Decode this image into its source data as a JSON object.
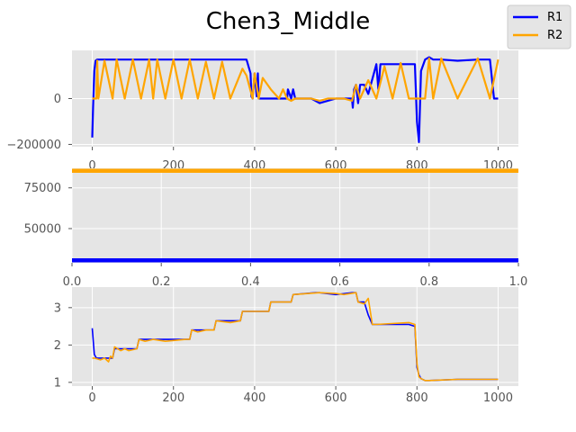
{
  "figure": {
    "title": "Chen3_Middle"
  },
  "legend": {
    "placement": "top-right",
    "entries": [
      {
        "label": "R1",
        "color": "#0000ff"
      },
      {
        "label": "R2",
        "color": "#ffa500"
      }
    ]
  },
  "chart_data": [
    {
      "type": "line",
      "panel": "top",
      "xlim": [
        -50,
        1050
      ],
      "ylim": [
        -210000,
        210000
      ],
      "xticks": [
        0,
        200,
        400,
        600,
        800,
        1000
      ],
      "yticks": [
        -200000,
        0
      ],
      "xtick_labels": [
        "0",
        "200",
        "400",
        "600",
        "800",
        "1000"
      ],
      "ytick_labels": [
        "−200000",
        "0"
      ],
      "grid": true,
      "series": [
        {
          "name": "R1",
          "color": "#0000ff",
          "x": [
            0,
            2,
            5,
            8,
            12,
            380,
            390,
            392,
            395,
            400,
            405,
            408,
            410,
            480,
            482,
            490,
            495,
            500,
            540,
            560,
            600,
            620,
            640,
            642,
            645,
            650,
            655,
            660,
            670,
            680,
            700,
            705,
            710,
            720,
            760,
            780,
            795,
            800,
            805,
            810,
            820,
            830,
            840,
            860,
            900,
            950,
            980,
            990,
            1000
          ],
          "y": [
            -170000,
            -40000,
            120000,
            165000,
            170000,
            170000,
            110000,
            10000,
            0,
            110000,
            10000,
            110000,
            0,
            0,
            40000,
            0,
            40000,
            0,
            0,
            -20000,
            0,
            0,
            0,
            -40000,
            40000,
            60000,
            -20000,
            60000,
            60000,
            20000,
            150000,
            40000,
            150000,
            150000,
            150000,
            150000,
            150000,
            -100000,
            -190000,
            120000,
            170000,
            180000,
            170000,
            170000,
            165000,
            170000,
            170000,
            0,
            0
          ]
        },
        {
          "name": "R2",
          "color": "#ffa500",
          "x": [
            0,
            5,
            10,
            12,
            15,
            30,
            50,
            60,
            80,
            100,
            120,
            140,
            150,
            160,
            180,
            200,
            220,
            240,
            260,
            280,
            300,
            320,
            340,
            370,
            380,
            395,
            400,
            410,
            420,
            440,
            460,
            470,
            480,
            490,
            500,
            520,
            540,
            560,
            580,
            600,
            620,
            640,
            650,
            660,
            680,
            700,
            720,
            740,
            760,
            780,
            800,
            820,
            830,
            840,
            860,
            900,
            950,
            980,
            1000
          ],
          "y": [
            0,
            0,
            0,
            165000,
            0,
            165000,
            0,
            170000,
            0,
            170000,
            0,
            170000,
            0,
            170000,
            0,
            170000,
            0,
            170000,
            0,
            160000,
            0,
            160000,
            0,
            130000,
            100000,
            0,
            110000,
            0,
            90000,
            40000,
            0,
            40000,
            0,
            -10000,
            0,
            0,
            0,
            -10000,
            0,
            0,
            0,
            -10000,
            60000,
            0,
            80000,
            0,
            140000,
            0,
            155000,
            0,
            0,
            0,
            175000,
            0,
            175000,
            0,
            175000,
            0,
            170000
          ]
        }
      ]
    },
    {
      "type": "line",
      "panel": "middle",
      "xlim": [
        0,
        1
      ],
      "ylim": [
        29000,
        87000
      ],
      "xticks": [
        0,
        0.2,
        0.4,
        0.6,
        0.8,
        1.0
      ],
      "yticks": [
        50000,
        75000
      ],
      "xtick_labels": [
        "0.0",
        "0.2",
        "0.4",
        "0.6",
        "0.8",
        "1.0"
      ],
      "ytick_labels": [
        "50000",
        "75000"
      ],
      "grid": true,
      "series": [
        {
          "name": "R1",
          "color": "#0000ff",
          "x": [
            0,
            1
          ],
          "y": [
            30500,
            30500
          ]
        },
        {
          "name": "R2",
          "color": "#ffa500",
          "x": [
            0,
            1
          ],
          "y": [
            85500,
            85500
          ]
        }
      ]
    },
    {
      "type": "line",
      "panel": "bottom",
      "xlim": [
        -50,
        1050
      ],
      "ylim": [
        0.9,
        3.55
      ],
      "xticks": [
        0,
        200,
        400,
        600,
        800,
        1000
      ],
      "yticks": [
        1,
        2,
        3
      ],
      "xtick_labels": [
        "0",
        "200",
        "400",
        "600",
        "800",
        "1000"
      ],
      "ytick_labels": [
        "1",
        "2",
        "3"
      ],
      "grid": true,
      "series": [
        {
          "name": "R1",
          "color": "#0000ff",
          "x": [
            0,
            5,
            10,
            50,
            55,
            110,
            115,
            240,
            245,
            300,
            305,
            365,
            370,
            435,
            440,
            490,
            495,
            550,
            560,
            600,
            640,
            650,
            655,
            670,
            680,
            690,
            700,
            780,
            795,
            800,
            805,
            810,
            820,
            830,
            900,
            1000
          ],
          "y": [
            2.45,
            1.75,
            1.65,
            1.65,
            1.9,
            1.9,
            2.15,
            2.15,
            2.4,
            2.4,
            2.65,
            2.65,
            2.9,
            2.9,
            3.15,
            3.15,
            3.35,
            3.4,
            3.4,
            3.35,
            3.4,
            3.4,
            3.15,
            3.15,
            2.8,
            2.55,
            2.55,
            2.55,
            2.5,
            1.4,
            1.2,
            1.1,
            1.05,
            1.05,
            1.08,
            1.08
          ]
        },
        {
          "name": "R2",
          "color": "#ffa500",
          "x": [
            0,
            5,
            20,
            30,
            40,
            45,
            50,
            55,
            70,
            80,
            90,
            110,
            115,
            130,
            150,
            180,
            230,
            240,
            245,
            260,
            280,
            300,
            305,
            340,
            365,
            370,
            435,
            440,
            490,
            495,
            560,
            600,
            620,
            650,
            655,
            670,
            680,
            690,
            700,
            780,
            795,
            800,
            805,
            810,
            820,
            830,
            900,
            1000
          ],
          "y": [
            1.65,
            1.65,
            1.6,
            1.65,
            1.55,
            1.7,
            1.65,
            1.95,
            1.85,
            1.9,
            1.85,
            1.9,
            2.15,
            2.1,
            2.15,
            2.1,
            2.15,
            2.15,
            2.4,
            2.35,
            2.4,
            2.4,
            2.65,
            2.6,
            2.65,
            2.9,
            2.9,
            3.15,
            3.15,
            3.35,
            3.4,
            3.38,
            3.35,
            3.4,
            3.15,
            3.1,
            3.25,
            2.55,
            2.55,
            2.6,
            2.55,
            1.5,
            1.15,
            1.1,
            1.05,
            1.05,
            1.08,
            1.08
          ]
        }
      ]
    }
  ]
}
